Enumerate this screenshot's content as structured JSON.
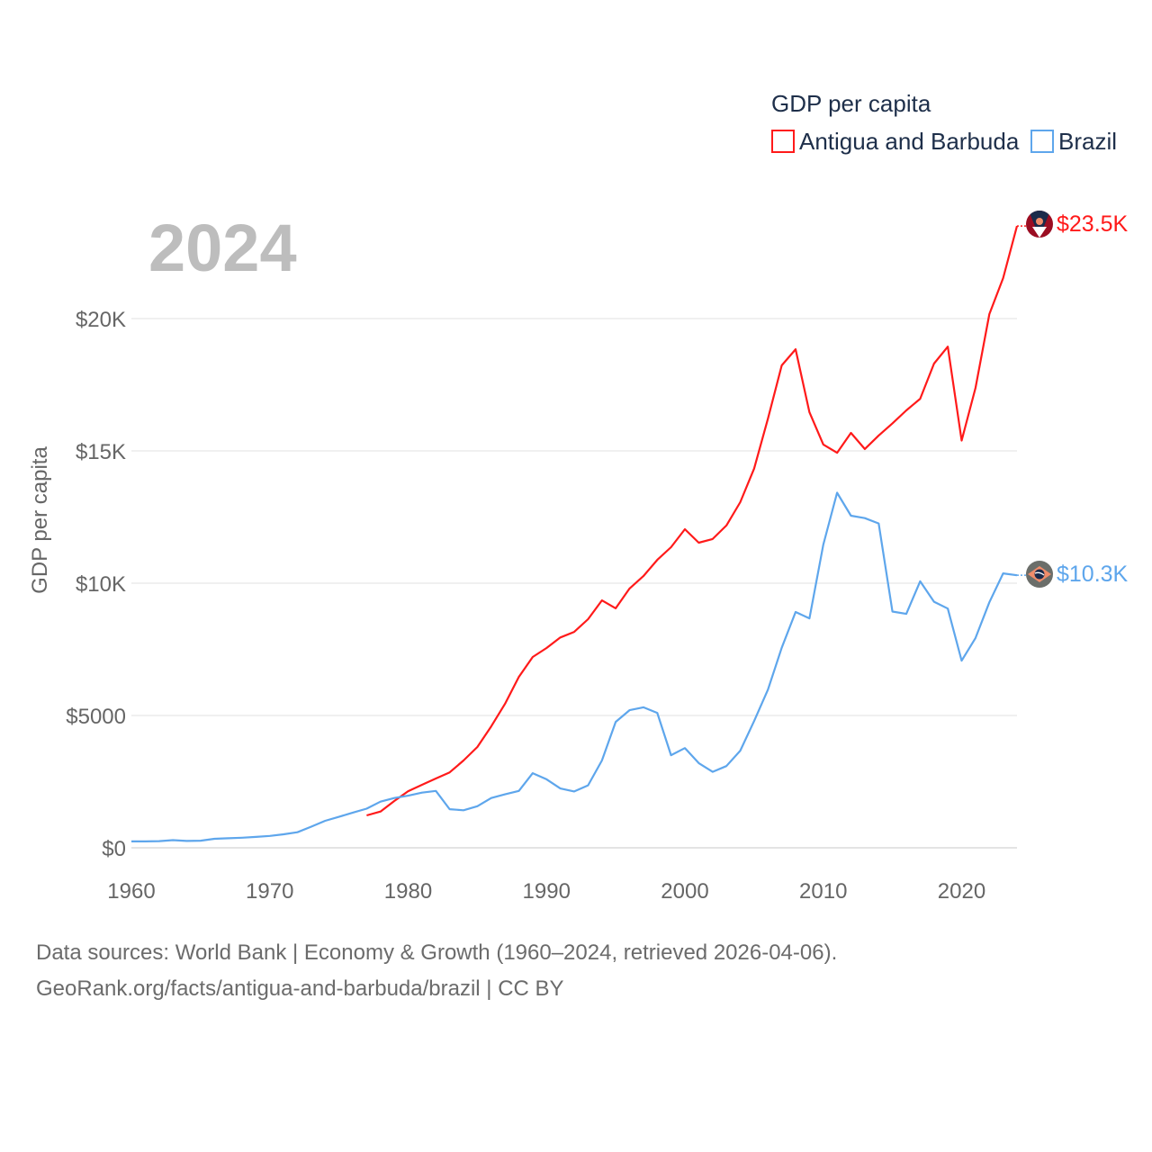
{
  "chart_data": {
    "type": "line",
    "big_year_label": "2024",
    "ylabel": "GDP per capita",
    "legend": {
      "title": "GDP per capita",
      "placement": "top-right"
    },
    "xlim": [
      1960,
      2024
    ],
    "ylim": [
      0,
      25000
    ],
    "grid": true,
    "x_ticks": [
      1960,
      1970,
      1980,
      1990,
      2000,
      2010,
      2020
    ],
    "x_tick_labels": [
      "1960",
      "1970",
      "1980",
      "1990",
      "2000",
      "2010",
      "2020"
    ],
    "y_ticks": [
      0,
      5000,
      10000,
      15000,
      20000
    ],
    "y_tick_labels": [
      "$0",
      "$5000",
      "$10K",
      "$15K",
      "$20K"
    ],
    "series": [
      {
        "name": "Antigua and Barbuda",
        "color": "#ff1a1a",
        "end_label": "$23.5K",
        "start_year": 1977,
        "values": [
          1224,
          1370,
          1770,
          2140,
          2380,
          2620,
          2850,
          3300,
          3810,
          4590,
          5440,
          6460,
          7210,
          7550,
          7950,
          8160,
          8640,
          9350,
          9050,
          9800,
          10270,
          10880,
          11360,
          12040,
          11530,
          11670,
          12180,
          13060,
          14330,
          16220,
          18230,
          18840,
          16460,
          15240,
          14930,
          15680,
          15070,
          15580,
          16040,
          16530,
          16970,
          18300,
          18940,
          15390,
          17380,
          20170,
          21530,
          23500
        ]
      },
      {
        "name": "Brazil",
        "color": "#5ea6ec",
        "end_label": "$10.3K",
        "start_year": 1960,
        "values": [
          240,
          240,
          250,
          290,
          260,
          270,
          340,
          360,
          380,
          410,
          450,
          510,
          590,
          800,
          1020,
          1170,
          1330,
          1480,
          1745,
          1880,
          1970,
          2085,
          2150,
          1460,
          1420,
          1570,
          1880,
          2020,
          2150,
          2820,
          2590,
          2240,
          2130,
          2360,
          3300,
          4760,
          5200,
          5310,
          5100,
          3500,
          3770,
          3200,
          2870,
          3090,
          3670,
          4790,
          5980,
          7560,
          8910,
          8670,
          11460,
          13420,
          12550,
          12460,
          12260,
          8930,
          8840,
          10070,
          9300,
          9040,
          7070,
          7930,
          9280,
          10370,
          10300
        ]
      }
    ]
  },
  "sources": {
    "line1": "Data sources: World Bank | Economy & Growth (1960–2024, retrieved 2026-04-06).",
    "line2": "GeoRank.org/facts/antigua-and-barbuda/brazil | CC BY"
  }
}
